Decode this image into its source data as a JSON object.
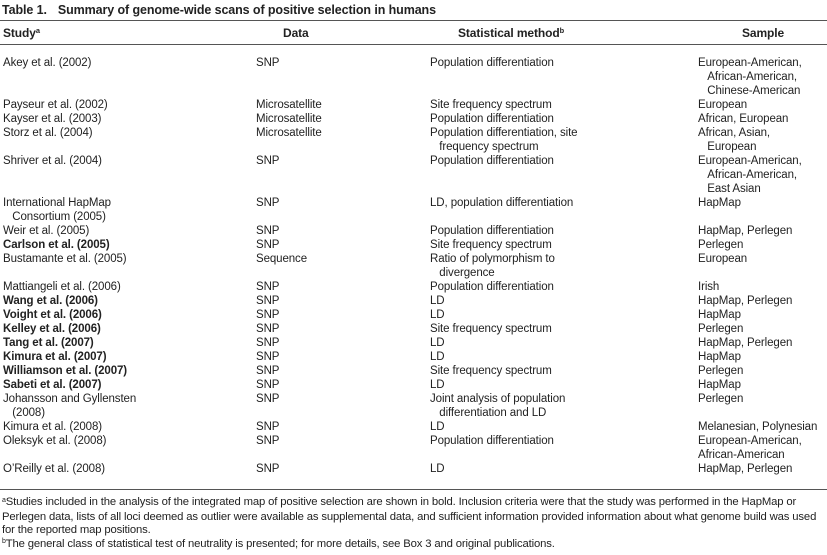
{
  "title": {
    "label": "Table 1.",
    "caption": "Summary of genome-wide scans of positive selection in humans"
  },
  "columns": [
    {
      "key": "study",
      "label": "Study",
      "sup": "a"
    },
    {
      "key": "data",
      "label": "Data",
      "sup": ""
    },
    {
      "key": "method",
      "label": "Statistical method",
      "sup": "b"
    },
    {
      "key": "sample",
      "label": "Sample",
      "sup": ""
    }
  ],
  "rows": [
    {
      "bold": false,
      "study": "Akey et al. (2002)",
      "data": "SNP",
      "method": "Population differentiation",
      "sample": "European-American,\n   African-American,\n   Chinese-American"
    },
    {
      "bold": false,
      "study": "Payseur et al. (2002)",
      "data": "Microsatellite",
      "method": "Site frequency spectrum",
      "sample": "European"
    },
    {
      "bold": false,
      "study": "Kayser et al. (2003)",
      "data": "Microsatellite",
      "method": "Population differentiation",
      "sample": "African, European"
    },
    {
      "bold": false,
      "study": "Storz et al. (2004)",
      "data": "Microsatellite",
      "method": "Population differentiation, site\n   frequency spectrum",
      "sample": "African, Asian,\n   European"
    },
    {
      "bold": false,
      "study": "Shriver et al. (2004)",
      "data": "SNP",
      "method": "Population differentiation",
      "sample": "European-American,\n   African-American,\n   East Asian"
    },
    {
      "bold": false,
      "study": "International HapMap\n   Consortium (2005)",
      "data": "SNP",
      "method": "LD, population differentiation",
      "sample": "HapMap"
    },
    {
      "bold": false,
      "study": "Weir et al. (2005)",
      "data": "SNP",
      "method": "Population differentiation",
      "sample": "HapMap, Perlegen"
    },
    {
      "bold": true,
      "study": "Carlson et al. (2005)",
      "data": "SNP",
      "method": "Site frequency spectrum",
      "sample": "Perlegen"
    },
    {
      "bold": false,
      "study": "Bustamante et al. (2005)",
      "data": "Sequence",
      "method": "Ratio of polymorphism to\n   divergence",
      "sample": "European"
    },
    {
      "bold": false,
      "study": "Mattiangeli et al. (2006)",
      "data": "SNP",
      "method": "Population differentiation",
      "sample": "Irish"
    },
    {
      "bold": true,
      "study": "Wang et al. (2006)",
      "data": "SNP",
      "method": "LD",
      "sample": "HapMap, Perlegen"
    },
    {
      "bold": true,
      "study": "Voight et al. (2006)",
      "data": "SNP",
      "method": "LD",
      "sample": "HapMap"
    },
    {
      "bold": true,
      "study": "Kelley et al. (2006)",
      "data": "SNP",
      "method": "Site frequency spectrum",
      "sample": "Perlegen"
    },
    {
      "bold": true,
      "study": "Tang et al. (2007)",
      "data": "SNP",
      "method": "LD",
      "sample": "HapMap, Perlegen"
    },
    {
      "bold": true,
      "study": "Kimura et al. (2007)",
      "data": "SNP",
      "method": "LD",
      "sample": "HapMap"
    },
    {
      "bold": true,
      "study": "Williamson et al. (2007)",
      "data": "SNP",
      "method": "Site frequency spectrum",
      "sample": "Perlegen"
    },
    {
      "bold": true,
      "study": "Sabeti et al. (2007)",
      "data": "SNP",
      "method": "LD",
      "sample": "HapMap"
    },
    {
      "bold": false,
      "study": "Johansson and Gyllensten\n   (2008)",
      "data": "SNP",
      "method": "Joint analysis of population\n   differentiation and LD",
      "sample": "Perlegen"
    },
    {
      "bold": false,
      "study": "Kimura et al. (2008)",
      "data": "SNP",
      "method": "LD",
      "sample": "Melanesian, Polynesian"
    },
    {
      "bold": false,
      "study": "Oleksyk et al. (2008)",
      "data": "SNP",
      "method": "Population differentiation",
      "sample": "European-American,\nAfrican-American"
    },
    {
      "bold": false,
      "study": "O’Reilly et al. (2008)",
      "data": "SNP",
      "method": "LD",
      "sample": "HapMap, Perlegen"
    }
  ],
  "footnotes": [
    {
      "sup": "a",
      "text": "Studies included in the analysis of the integrated map of positive selection are shown in bold. Inclusion criteria were that the study was performed in the HapMap or Perlegen data, lists of all loci deemed as outlier were available as supplemental data, and sufficient information provided information about what genome build was used for the reported map positions."
    },
    {
      "sup": "b",
      "text": "The general class of statistical test of neutrality is presented; for more details, see Box 3 and original publications."
    }
  ],
  "colors": {
    "text": "#222222",
    "rule": "#555555",
    "background": "#ffffff"
  }
}
